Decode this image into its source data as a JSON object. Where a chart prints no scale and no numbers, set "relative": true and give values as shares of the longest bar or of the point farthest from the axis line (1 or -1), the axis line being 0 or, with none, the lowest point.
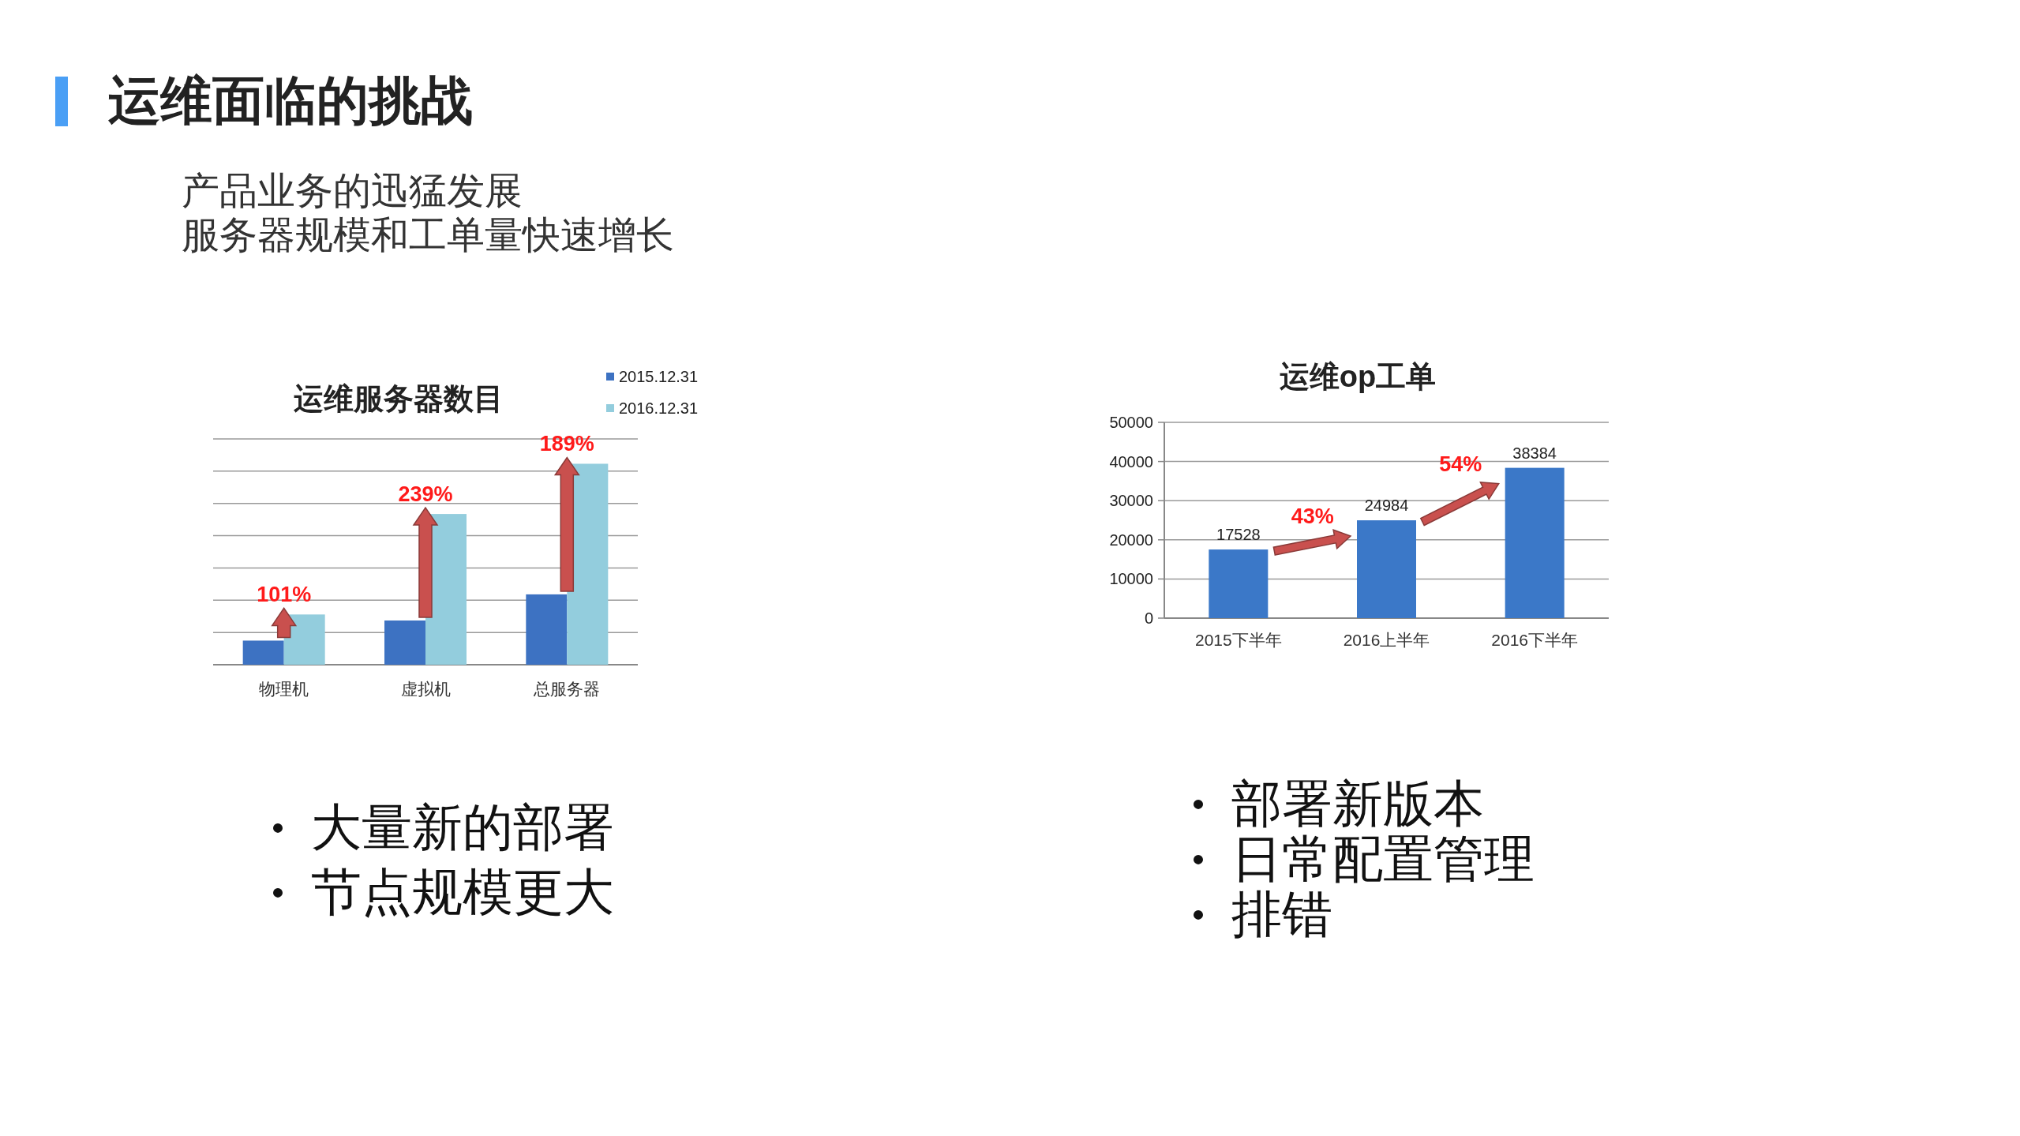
{
  "chart_data": [
    {
      "type": "other",
      "title": "运维面临的挑战",
      "annotations": [
        "产品业务的迅猛发展",
        "服务器规模和工单量快速增长"
      ]
    },
    {
      "type": "bar",
      "title": "运维服务器数目",
      "categories": [
        "物理机",
        "虚拟机",
        "总服务器"
      ],
      "relative": true,
      "grid": true,
      "legend": "top right",
      "series": [
        {
          "name": "2015.12.31",
          "color": "#3d72c2",
          "values": [
            0.12,
            0.22,
            0.35
          ]
        },
        {
          "name": "2016.12.31",
          "color": "#93cddd",
          "values": [
            0.25,
            0.75,
            1
          ]
        }
      ],
      "annotations": [
        {
          "text": "101%",
          "x": "物理机",
          "y": 0.25
        },
        {
          "text": "239%",
          "x": "虚拟机",
          "y": 0.75
        },
        {
          "text": "189%",
          "x": "总服务器",
          "y": 1
        },
        "大量新的部署",
        "节点规模更大"
      ]
    },
    {
      "type": "bar",
      "title": "运维op工单",
      "categories": [
        "2015下半年",
        "2016上半年",
        "2016下半年"
      ],
      "values": [
        17528,
        24984,
        38384
      ],
      "color": "#3b78c8",
      "ylim": [
        0,
        50000
      ],
      "yticks": [
        0,
        10000,
        20000,
        30000,
        40000,
        50000
      ],
      "grid": "y",
      "data_labels": true,
      "annotations": [
        {
          "text": "43%",
          "x": "2016上半年"
        },
        {
          "text": "54%",
          "x": "2016下半年"
        },
        "部署新版本",
        "日常配置管理",
        "排错"
      ]
    }
  ]
}
